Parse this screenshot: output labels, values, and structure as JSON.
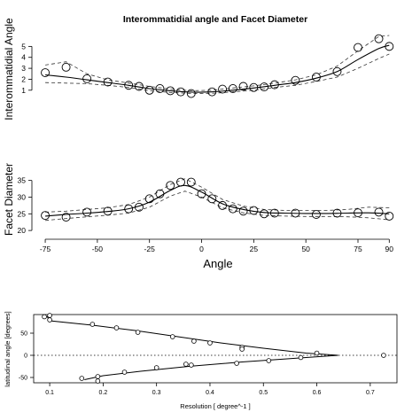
{
  "chart_data": [
    {
      "type": "scatter",
      "title": "Interommatidial angle and Facet Diameter",
      "xlabel": "",
      "ylabel": "Interommatidial Angle",
      "xlim": [
        -78,
        92
      ],
      "ylim": [
        0.5,
        6
      ],
      "yticks": [
        1,
        2,
        3,
        4,
        5
      ],
      "points": [
        {
          "x": -75,
          "y": 2.6
        },
        {
          "x": -65,
          "y": 3.1
        },
        {
          "x": -55,
          "y": 2.05
        },
        {
          "x": -45,
          "y": 1.75
        },
        {
          "x": -35,
          "y": 1.45
        },
        {
          "x": -30,
          "y": 1.35
        },
        {
          "x": -25,
          "y": 1.0
        },
        {
          "x": -20,
          "y": 1.15
        },
        {
          "x": -15,
          "y": 0.95
        },
        {
          "x": -10,
          "y": 0.85
        },
        {
          "x": -5,
          "y": 0.7
        },
        {
          "x": 5,
          "y": 0.85
        },
        {
          "x": 10,
          "y": 1.1
        },
        {
          "x": 15,
          "y": 1.15
        },
        {
          "x": 20,
          "y": 1.35
        },
        {
          "x": 25,
          "y": 1.25
        },
        {
          "x": 30,
          "y": 1.3
        },
        {
          "x": 35,
          "y": 1.5
        },
        {
          "x": 45,
          "y": 1.9
        },
        {
          "x": 55,
          "y": 2.2
        },
        {
          "x": 65,
          "y": 2.7
        },
        {
          "x": 75,
          "y": 4.9
        },
        {
          "x": 85,
          "y": 5.7
        },
        {
          "x": 90,
          "y": 5.0
        }
      ],
      "fit": [
        {
          "x": -75,
          "y": 2.4
        },
        {
          "x": -65,
          "y": 2.2
        },
        {
          "x": -55,
          "y": 1.95
        },
        {
          "x": -45,
          "y": 1.7
        },
        {
          "x": -35,
          "y": 1.45
        },
        {
          "x": -25,
          "y": 1.15
        },
        {
          "x": -15,
          "y": 0.95
        },
        {
          "x": -5,
          "y": 0.82
        },
        {
          "x": 5,
          "y": 0.85
        },
        {
          "x": 15,
          "y": 1.0
        },
        {
          "x": 25,
          "y": 1.2
        },
        {
          "x": 35,
          "y": 1.45
        },
        {
          "x": 45,
          "y": 1.7
        },
        {
          "x": 55,
          "y": 2.1
        },
        {
          "x": 65,
          "y": 2.7
        },
        {
          "x": 75,
          "y": 3.8
        },
        {
          "x": 85,
          "y": 4.8
        },
        {
          "x": 90,
          "y": 5.1
        }
      ],
      "upper": [
        {
          "x": -75,
          "y": 3.3
        },
        {
          "x": -65,
          "y": 3.6
        },
        {
          "x": -55,
          "y": 2.5
        },
        {
          "x": -45,
          "y": 1.95
        },
        {
          "x": -35,
          "y": 1.65
        },
        {
          "x": -25,
          "y": 1.35
        },
        {
          "x": -15,
          "y": 1.1
        },
        {
          "x": -5,
          "y": 0.95
        },
        {
          "x": 5,
          "y": 1.0
        },
        {
          "x": 15,
          "y": 1.2
        },
        {
          "x": 25,
          "y": 1.4
        },
        {
          "x": 35,
          "y": 1.65
        },
        {
          "x": 45,
          "y": 1.95
        },
        {
          "x": 55,
          "y": 2.4
        },
        {
          "x": 65,
          "y": 3.2
        },
        {
          "x": 75,
          "y": 4.6
        },
        {
          "x": 85,
          "y": 5.9
        },
        {
          "x": 90,
          "y": 6.0
        }
      ],
      "lower": [
        {
          "x": -75,
          "y": 1.7
        },
        {
          "x": -65,
          "y": 1.65
        },
        {
          "x": -55,
          "y": 1.6
        },
        {
          "x": -45,
          "y": 1.45
        },
        {
          "x": -35,
          "y": 1.25
        },
        {
          "x": -25,
          "y": 0.95
        },
        {
          "x": -15,
          "y": 0.8
        },
        {
          "x": -5,
          "y": 0.7
        },
        {
          "x": 5,
          "y": 0.72
        },
        {
          "x": 15,
          "y": 0.85
        },
        {
          "x": 25,
          "y": 1.0
        },
        {
          "x": 35,
          "y": 1.25
        },
        {
          "x": 45,
          "y": 1.45
        },
        {
          "x": 55,
          "y": 1.8
        },
        {
          "x": 65,
          "y": 2.2
        },
        {
          "x": 75,
          "y": 3.0
        },
        {
          "x": 85,
          "y": 3.9
        },
        {
          "x": 90,
          "y": 4.3
        }
      ]
    },
    {
      "type": "scatter",
      "xlabel": "Angle",
      "ylabel": "Facet Diameter",
      "xlim": [
        -78,
        92
      ],
      "ylim": [
        19.5,
        36.5
      ],
      "xticks": [
        -75,
        -50,
        -25,
        0,
        25,
        50,
        75,
        90
      ],
      "yticks": [
        20,
        25,
        30,
        35
      ],
      "points": [
        {
          "x": -75,
          "y": 24.5
        },
        {
          "x": -65,
          "y": 24.0
        },
        {
          "x": -55,
          "y": 25.5
        },
        {
          "x": -45,
          "y": 25.8
        },
        {
          "x": -35,
          "y": 26.5
        },
        {
          "x": -30,
          "y": 27.0
        },
        {
          "x": -25,
          "y": 29.5
        },
        {
          "x": -20,
          "y": 31.0
        },
        {
          "x": -15,
          "y": 33.5
        },
        {
          "x": -10,
          "y": 34.5
        },
        {
          "x": -5,
          "y": 34.5
        },
        {
          "x": 0,
          "y": 31.0
        },
        {
          "x": 5,
          "y": 29.5
        },
        {
          "x": 10,
          "y": 27.5
        },
        {
          "x": 15,
          "y": 26.5
        },
        {
          "x": 20,
          "y": 25.8
        },
        {
          "x": 25,
          "y": 26.0
        },
        {
          "x": 30,
          "y": 25.0
        },
        {
          "x": 35,
          "y": 25.2
        },
        {
          "x": 45,
          "y": 25.2
        },
        {
          "x": 55,
          "y": 24.8
        },
        {
          "x": 65,
          "y": 25.2
        },
        {
          "x": 75,
          "y": 25.3
        },
        {
          "x": 85,
          "y": 25.5
        },
        {
          "x": 90,
          "y": 24.3
        }
      ],
      "fit": [
        {
          "x": -75,
          "y": 24.3
        },
        {
          "x": -65,
          "y": 24.8
        },
        {
          "x": -55,
          "y": 25.2
        },
        {
          "x": -45,
          "y": 25.7
        },
        {
          "x": -35,
          "y": 26.5
        },
        {
          "x": -25,
          "y": 28.5
        },
        {
          "x": -15,
          "y": 32.0
        },
        {
          "x": -8,
          "y": 33.5
        },
        {
          "x": 0,
          "y": 31.5
        },
        {
          "x": 10,
          "y": 28.0
        },
        {
          "x": 20,
          "y": 26.3
        },
        {
          "x": 30,
          "y": 25.4
        },
        {
          "x": 40,
          "y": 25.2
        },
        {
          "x": 50,
          "y": 25.1
        },
        {
          "x": 60,
          "y": 25.1
        },
        {
          "x": 70,
          "y": 25.2
        },
        {
          "x": 80,
          "y": 25.3
        },
        {
          "x": 90,
          "y": 25.0
        }
      ],
      "upper": [
        {
          "x": -75,
          "y": 25.5
        },
        {
          "x": -65,
          "y": 25.8
        },
        {
          "x": -55,
          "y": 26.3
        },
        {
          "x": -45,
          "y": 26.8
        },
        {
          "x": -35,
          "y": 27.8
        },
        {
          "x": -25,
          "y": 30.0
        },
        {
          "x": -15,
          "y": 33.8
        },
        {
          "x": -8,
          "y": 35.5
        },
        {
          "x": 0,
          "y": 33.0
        },
        {
          "x": 10,
          "y": 29.3
        },
        {
          "x": 20,
          "y": 27.3
        },
        {
          "x": 30,
          "y": 26.3
        },
        {
          "x": 40,
          "y": 26.0
        },
        {
          "x": 50,
          "y": 26.0
        },
        {
          "x": 60,
          "y": 26.0
        },
        {
          "x": 70,
          "y": 26.3
        },
        {
          "x": 80,
          "y": 27.0
        },
        {
          "x": 90,
          "y": 26.8
        }
      ],
      "lower": [
        {
          "x": -75,
          "y": 23.0
        },
        {
          "x": -65,
          "y": 23.6
        },
        {
          "x": -55,
          "y": 24.1
        },
        {
          "x": -45,
          "y": 24.6
        },
        {
          "x": -35,
          "y": 25.2
        },
        {
          "x": -25,
          "y": 27.0
        },
        {
          "x": -15,
          "y": 30.3
        },
        {
          "x": -8,
          "y": 31.8
        },
        {
          "x": 0,
          "y": 30.0
        },
        {
          "x": 10,
          "y": 26.8
        },
        {
          "x": 20,
          "y": 25.3
        },
        {
          "x": 30,
          "y": 24.5
        },
        {
          "x": 40,
          "y": 24.3
        },
        {
          "x": 50,
          "y": 24.2
        },
        {
          "x": 60,
          "y": 24.2
        },
        {
          "x": 70,
          "y": 24.1
        },
        {
          "x": 80,
          "y": 23.8
        },
        {
          "x": 90,
          "y": 23.2
        }
      ]
    },
    {
      "type": "scatter",
      "xlabel": "Resolution [ degree^-1 ]",
      "ylabel": "latitudinal angle [degrees]",
      "xlim": [
        0.07,
        0.75
      ],
      "ylim": [
        -62,
        92
      ],
      "xticks": [
        0.1,
        0.2,
        0.3,
        0.4,
        0.5,
        0.6,
        0.7
      ],
      "yticks": [
        -50,
        0,
        50
      ],
      "reference_y": 0,
      "points": [
        {
          "x": 0.09,
          "y": 87
        },
        {
          "x": 0.1,
          "y": 90
        },
        {
          "x": 0.1,
          "y": 80
        },
        {
          "x": 0.18,
          "y": 70
        },
        {
          "x": 0.225,
          "y": 62
        },
        {
          "x": 0.265,
          "y": 52
        },
        {
          "x": 0.33,
          "y": 42
        },
        {
          "x": 0.37,
          "y": 32
        },
        {
          "x": 0.4,
          "y": 28
        },
        {
          "x": 0.46,
          "y": 18
        },
        {
          "x": 0.46,
          "y": 14
        },
        {
          "x": 0.6,
          "y": 5
        },
        {
          "x": 0.725,
          "y": 0
        },
        {
          "x": 0.57,
          "y": -5
        },
        {
          "x": 0.51,
          "y": -12
        },
        {
          "x": 0.45,
          "y": -18
        },
        {
          "x": 0.365,
          "y": -22
        },
        {
          "x": 0.355,
          "y": -20
        },
        {
          "x": 0.3,
          "y": -28
        },
        {
          "x": 0.24,
          "y": -38
        },
        {
          "x": 0.19,
          "y": -48
        },
        {
          "x": 0.16,
          "y": -52
        },
        {
          "x": 0.19,
          "y": -58
        }
      ],
      "fit": [
        {
          "x": 0.095,
          "y": 88
        },
        {
          "x": 0.1,
          "y": 78
        },
        {
          "x": 0.18,
          "y": 68
        },
        {
          "x": 0.26,
          "y": 56
        },
        {
          "x": 0.34,
          "y": 42
        },
        {
          "x": 0.42,
          "y": 28
        },
        {
          "x": 0.5,
          "y": 16
        },
        {
          "x": 0.58,
          "y": 5
        },
        {
          "x": 0.64,
          "y": 0
        },
        {
          "x": 0.58,
          "y": -5
        },
        {
          "x": 0.46,
          "y": -15
        },
        {
          "x": 0.36,
          "y": -25
        },
        {
          "x": 0.27,
          "y": -36
        },
        {
          "x": 0.2,
          "y": -46
        },
        {
          "x": 0.165,
          "y": -55
        }
      ]
    }
  ]
}
